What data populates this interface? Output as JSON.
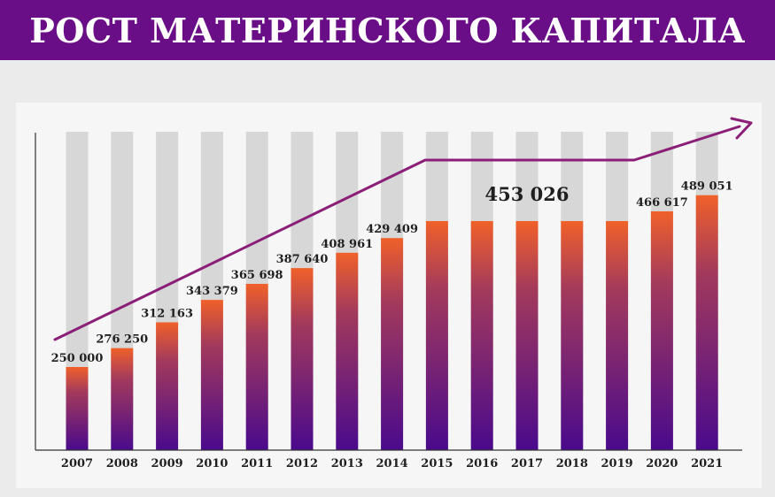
{
  "header": {
    "title": "РОСТ МАТЕРИНСКОГО КАПИТАЛА"
  },
  "colors": {
    "header_bg": "#6a0e87",
    "bar_top": "#f0612a",
    "bar_bottom": "#4a0a8c",
    "bar_track": "#d7d7d7",
    "trend_line": "#8b1f78"
  },
  "chart_data": {
    "type": "bar",
    "categories": [
      "2007",
      "2008",
      "2009",
      "2010",
      "2011",
      "2012",
      "2013",
      "2014",
      "2015",
      "2016",
      "2017",
      "2018",
      "2019",
      "2020",
      "2021"
    ],
    "values": [
      250000,
      276250,
      312163,
      343379,
      365698,
      387640,
      408961,
      429409,
      453026,
      453026,
      453026,
      453026,
      453026,
      466617,
      489051
    ],
    "value_labels": [
      "250 000",
      "276 250",
      "312 163",
      "343 379",
      "365 698",
      "387 640",
      "408 961",
      "429 409",
      "",
      "",
      "453 026",
      "",
      "",
      "466 617",
      "489 051"
    ],
    "title": "",
    "xlabel": "",
    "ylabel": "",
    "ylim": [
      200000,
      520000
    ],
    "grid": false,
    "legend": "none",
    "trend_arrow": true
  }
}
